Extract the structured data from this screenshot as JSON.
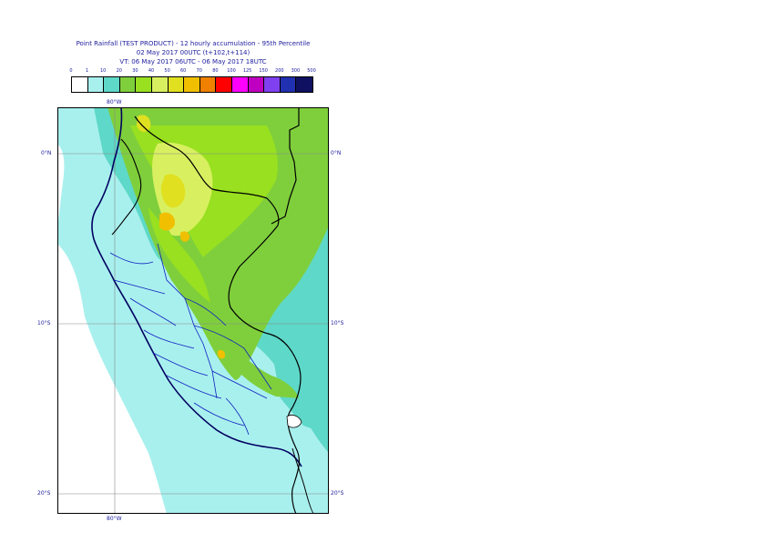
{
  "title": {
    "line1": "Point Rainfall (TEST PRODUCT) - 12 hourly accumulation - 95th Percentile",
    "line2": "02 May 2017 00UTC (t+102,t+114)",
    "line3": "VT: 06 May 2017 06UTC - 06 May 2017 18UTC"
  },
  "legend": {
    "labels": [
      "0",
      "1",
      "10",
      "20",
      "30",
      "40",
      "50",
      "60",
      "70",
      "80",
      "100",
      "125",
      "150",
      "200",
      "300",
      "500"
    ],
    "colors": [
      "#ffffff",
      "#a8f0ee",
      "#5ed8c8",
      "#7fcf3c",
      "#98e020",
      "#d8f060",
      "#e0e020",
      "#f0c000",
      "#f08000",
      "#ff0000",
      "#ff00ff",
      "#c000c0",
      "#8040f0",
      "#2030b0",
      "#101060"
    ]
  },
  "axes": {
    "lon_top": "80°W",
    "lon_bottom": "80°W",
    "lat_0_left": "0°N",
    "lat_0_right": "0°N",
    "lat_10_left": "10°S",
    "lat_10_right": "10°S",
    "lat_20_left": "20°S",
    "lat_20_right": "20°S"
  }
}
